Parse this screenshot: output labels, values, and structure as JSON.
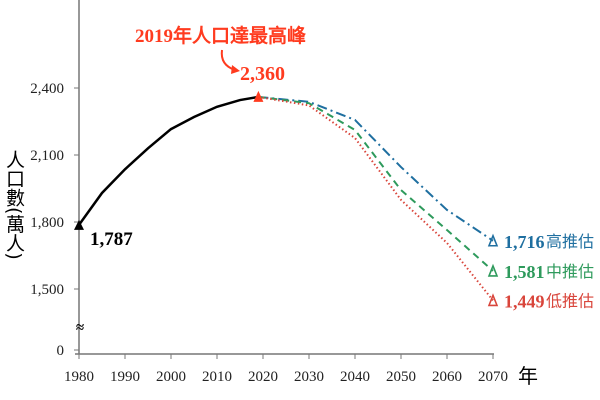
{
  "chart_data": {
    "type": "line",
    "title": "",
    "annotation": "2019年人口達最高峰",
    "ylabel": "人口數(萬人)",
    "xlabel": "年",
    "x_ticks": [
      1980,
      1990,
      2000,
      2010,
      2020,
      2030,
      2040,
      2050,
      2060,
      2070
    ],
    "y_ticks": [
      {
        "v": 0,
        "label": "0"
      },
      {
        "v": 1500,
        "label": "1,500"
      },
      {
        "v": 1800,
        "label": "1,800"
      },
      {
        "v": 2100,
        "label": "2,100"
      },
      {
        "v": 2400,
        "label": "2,400"
      }
    ],
    "axis_break": "≈",
    "xlim": [
      1980,
      2070
    ],
    "ylim_broken": [
      1450,
      2450
    ],
    "historical": {
      "color": "#000000",
      "x": [
        1980,
        1985,
        1990,
        1995,
        2000,
        2005,
        2010,
        2015,
        2019
      ],
      "y": [
        1787,
        1930,
        2036,
        2130,
        2216,
        2270,
        2316,
        2346,
        2360
      ],
      "start_label": "1,787",
      "peak_label": "2,360",
      "peak_color": "#ff3b1f"
    },
    "series": [
      {
        "name": "高推估",
        "color": "#1f6fa0",
        "dash": "dashdot",
        "end_label": "1,716",
        "x": [
          2019,
          2030,
          2040,
          2050,
          2060,
          2070
        ],
        "y": [
          2360,
          2338,
          2257,
          2046,
          1854,
          1716
        ]
      },
      {
        "name": "中推估",
        "color": "#2e9a5c",
        "dash": "dashed",
        "end_label": "1,581",
        "x": [
          2019,
          2030,
          2040,
          2050,
          2060,
          2070
        ],
        "y": [
          2360,
          2332,
          2212,
          1943,
          1764,
          1581
        ]
      },
      {
        "name": "低推估",
        "color": "#d9453b",
        "dash": "dotted",
        "end_label": "1,449",
        "x": [
          2019,
          2030,
          2040,
          2050,
          2060,
          2070
        ],
        "y": [
          2360,
          2322,
          2176,
          1899,
          1706,
          1449
        ]
      }
    ]
  }
}
